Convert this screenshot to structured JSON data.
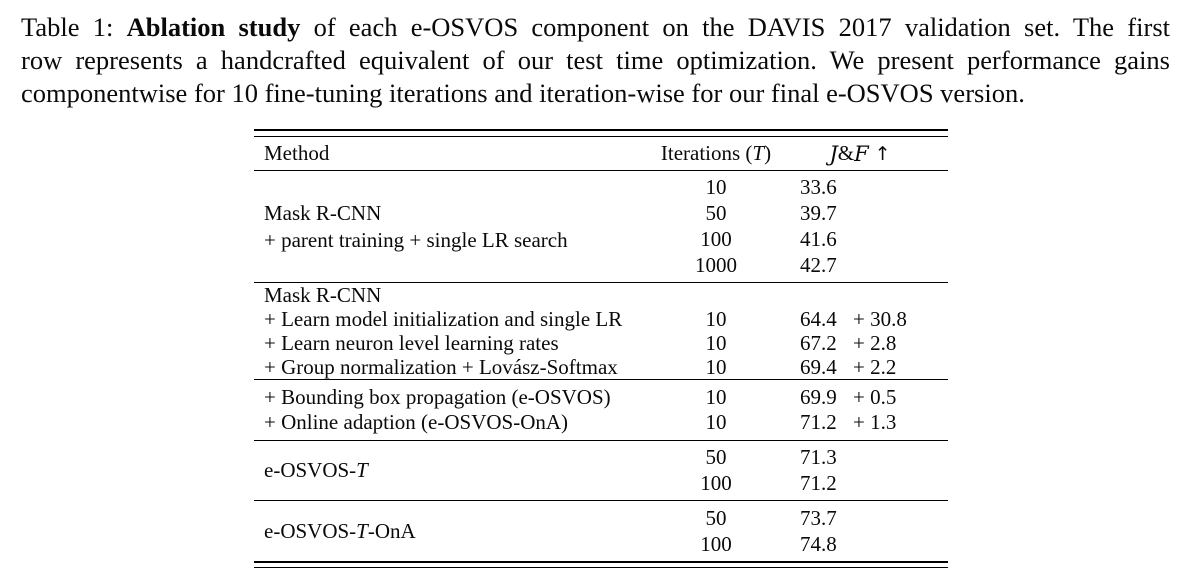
{
  "caption": {
    "label": "Table 1: ",
    "bold_phrase": "Ablation study",
    "line1_rest": " of each e-OSVOS component on the DAVIS 2017 validation set. The first",
    "line2": "row represents a handcrafted equivalent of our test time optimization. We present performance gains",
    "line3": "componentwise for 10 fine-tuning iterations and iteration-wise for our final e-OSVOS version."
  },
  "table": {
    "header": {
      "method": "Method",
      "iterations_prefix": "Iterations (",
      "iterations_symbol": "T",
      "iterations_suffix": ")",
      "metric_j": "J",
      "metric_ampersand": "&",
      "metric_f": "F",
      "metric_arrow": "↑"
    },
    "block1": {
      "method_line1": "Mask R-CNN",
      "method_line2": "+ parent training + single LR search",
      "rows": [
        {
          "iterations": "10",
          "jf": "33.6"
        },
        {
          "iterations": "50",
          "jf": "39.7"
        },
        {
          "iterations": "100",
          "jf": "41.6"
        },
        {
          "iterations": "1000",
          "jf": "42.7"
        }
      ]
    },
    "block2": {
      "rows": [
        {
          "method": "Mask R-CNN",
          "iterations": "",
          "jf": "",
          "gain": ""
        },
        {
          "method": "+ Learn model initialization and single LR",
          "iterations": "10",
          "jf": "64.4",
          "gain": "+ 30.8"
        },
        {
          "method": "+ Learn neuron level learning rates",
          "iterations": "10",
          "jf": "67.2",
          "gain": "+ 2.8"
        },
        {
          "method": "+ Group normalization + Lovász-Softmax",
          "iterations": "10",
          "jf": "69.4",
          "gain": "+ 2.2"
        }
      ]
    },
    "block3": {
      "rows": [
        {
          "method": "+ Bounding box propagation (e-OSVOS)",
          "iterations": "10",
          "jf": "69.9",
          "gain": "+ 0.5"
        },
        {
          "method": "+ Online adaption (e-OSVOS-OnA)",
          "iterations": "10",
          "jf": "71.2",
          "gain": "+ 1.3"
        }
      ]
    },
    "block4": {
      "method_prefix": "e-OSVOS-",
      "method_symbol": "T",
      "method_suffix": "",
      "rows": [
        {
          "iterations": "50",
          "jf": "71.3"
        },
        {
          "iterations": "100",
          "jf": "71.2"
        }
      ]
    },
    "block5": {
      "method_prefix": "e-OSVOS-",
      "method_symbol": "T",
      "method_suffix": "-OnA",
      "rows": [
        {
          "iterations": "50",
          "jf": "73.7"
        },
        {
          "iterations": "100",
          "jf": "74.8"
        }
      ]
    }
  }
}
